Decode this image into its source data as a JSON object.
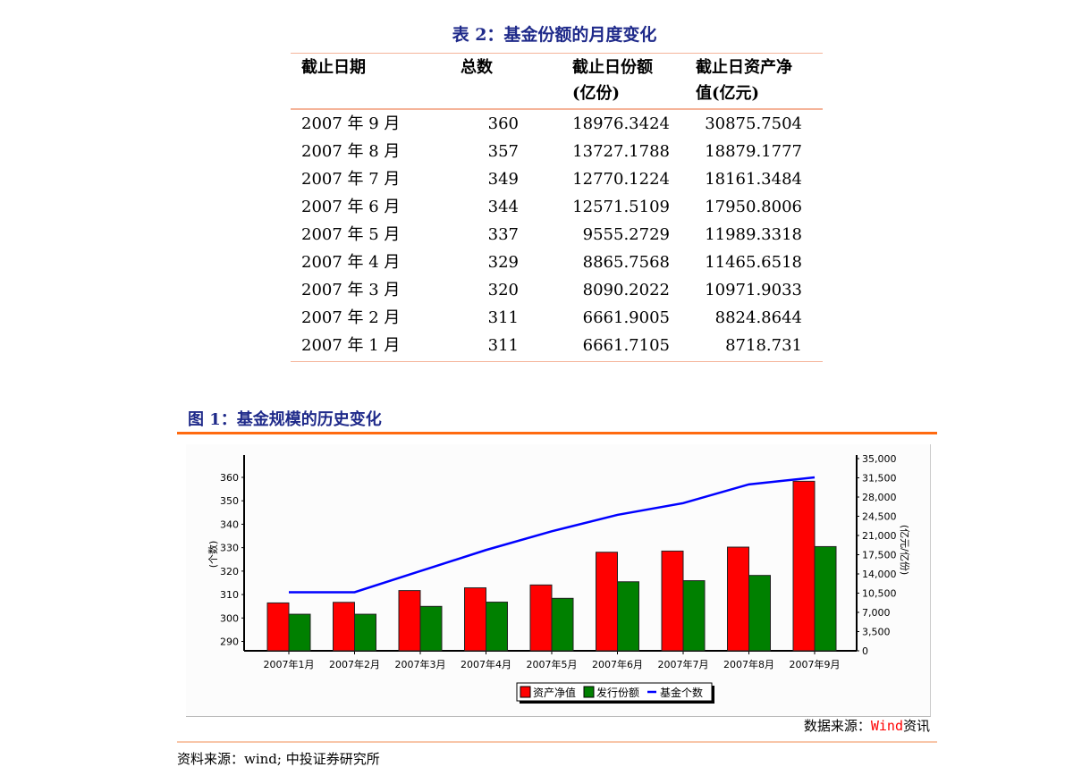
{
  "table": {
    "title": "表 2：基金份额的月度变化",
    "headers": [
      "截止日期",
      "总数",
      "截止日份额\n(亿份)",
      "截止日资产净\n值(亿元)"
    ],
    "header_lines": [
      [
        "截止日期"
      ],
      [
        "总数"
      ],
      [
        "截止日份额",
        "(亿份)"
      ],
      [
        "截止日资产净",
        "值(亿元)"
      ]
    ],
    "rows": [
      [
        "2007 年 9 月",
        "360",
        "18976.3424",
        "30875.7504"
      ],
      [
        "2007 年 8 月",
        "357",
        "13727.1788",
        "18879.1777"
      ],
      [
        "2007 年 7 月",
        "349",
        "12770.1224",
        "18161.3484"
      ],
      [
        "2007 年 6 月",
        "344",
        "12571.5109",
        "17950.8006"
      ],
      [
        "2007 年 5 月",
        "337",
        "9555.2729",
        "11989.3318"
      ],
      [
        "2007 年 4 月",
        "329",
        "8865.7568",
        "11465.6518"
      ],
      [
        "2007 年 3 月",
        "320",
        "8090.2022",
        "10971.9033"
      ],
      [
        "2007 年 2 月",
        "311",
        "6661.9005",
        "8824.8644"
      ],
      [
        "2007 年 1 月",
        "311",
        "6661.7105",
        "8718.731"
      ]
    ]
  },
  "figure": {
    "title": "图 1：基金规模的历史变化",
    "chart_source_prefix": "数据来源：",
    "chart_source_brand": "Wind",
    "chart_source_suffix": "资讯",
    "footer_source": "资料来源：wind; 中投证券研究所"
  },
  "chart_data": {
    "type": "bar",
    "categories": [
      "2007年1月",
      "2007年2月",
      "2007年3月",
      "2007年4月",
      "2007年5月",
      "2007年6月",
      "2007年7月",
      "2007年8月",
      "2007年9月"
    ],
    "series": [
      {
        "name": "资产净值",
        "kind": "bar",
        "axis": "right",
        "color": "#ff0000",
        "values": [
          8718.731,
          8824.8644,
          10971.9033,
          11465.6518,
          11989.3318,
          17950.8006,
          18161.3484,
          18879.1777,
          30875.7504
        ]
      },
      {
        "name": "发行份额",
        "kind": "bar",
        "axis": "right",
        "color": "#008000",
        "values": [
          6661.7105,
          6661.9005,
          8090.2022,
          8865.7568,
          9555.2729,
          12571.5109,
          12770.1224,
          13727.1788,
          18976.3424
        ]
      },
      {
        "name": "基金个数",
        "kind": "line",
        "axis": "left",
        "color": "#0000ff",
        "values": [
          311,
          311,
          320,
          329,
          337,
          344,
          349,
          357,
          360
        ]
      }
    ],
    "left_axis": {
      "label": "(个数)",
      "ticks": [
        "290",
        "300",
        "310",
        "320",
        "330",
        "340",
        "350",
        "360"
      ],
      "range": [
        286,
        368
      ]
    },
    "right_axis": {
      "label": "(亿元/亿份)",
      "ticks": [
        "0",
        "3,500",
        "7,000",
        "10,500",
        "14,000",
        "17,500",
        "21,000",
        "24,500",
        "28,000",
        "31,500",
        "35,000"
      ],
      "range": [
        0,
        35000
      ]
    },
    "legend_position": "bottom",
    "grid": false
  }
}
